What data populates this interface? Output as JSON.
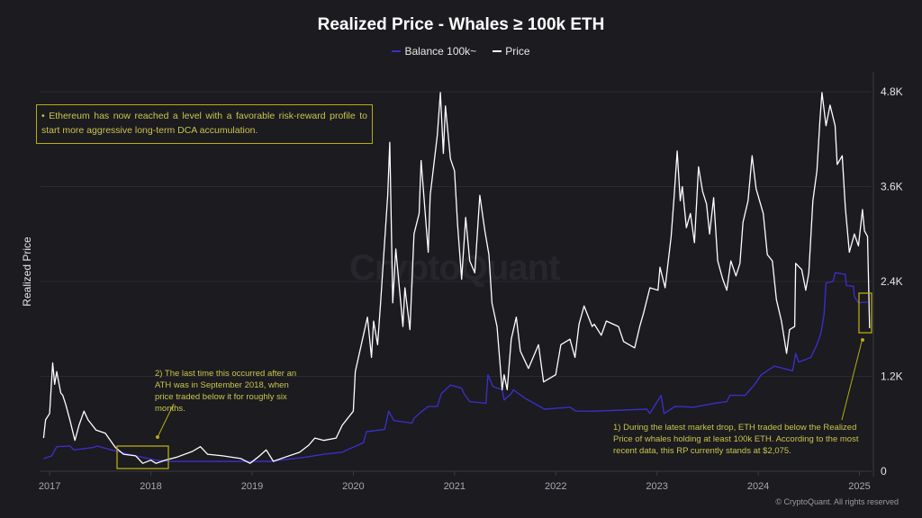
{
  "chart_data": {
    "type": "line",
    "title": "Realized Price - Whales ≥ 100k ETH",
    "ylabel": "Realized Price",
    "xlabel": "",
    "xlim": [
      2016.91,
      2025.12
    ],
    "ylim": [
      0,
      5000
    ],
    "x_ticks": [
      "2017",
      "2018",
      "2019",
      "2020",
      "2021",
      "2022",
      "2023",
      "2024",
      "2025"
    ],
    "y_ticks": [
      {
        "value": 0,
        "label": "0"
      },
      {
        "value": 1200,
        "label": "1.2K"
      },
      {
        "value": 2400,
        "label": "2.4K"
      },
      {
        "value": 3600,
        "label": "3.6K"
      },
      {
        "value": 4800,
        "label": "4.8K"
      }
    ],
    "y_axis_side": "right",
    "grid": true,
    "legend_position": "top-center",
    "series": [
      {
        "name": "Balance 100k~",
        "color": "#3a2fc4",
        "points": [
          [
            2016.94,
            160
          ],
          [
            2017.02,
            195
          ],
          [
            2017.07,
            310
          ],
          [
            2017.2,
            320
          ],
          [
            2017.24,
            270
          ],
          [
            2017.43,
            300
          ],
          [
            2017.47,
            320
          ],
          [
            2017.52,
            300
          ],
          [
            2017.67,
            250
          ],
          [
            2017.85,
            195
          ],
          [
            2018.05,
            140
          ],
          [
            2018.2,
            125
          ],
          [
            2018.65,
            125
          ],
          [
            2019.18,
            125
          ],
          [
            2019.54,
            180
          ],
          [
            2019.71,
            215
          ],
          [
            2019.89,
            240
          ],
          [
            2019.94,
            270
          ],
          [
            2020.01,
            310
          ],
          [
            2020.1,
            360
          ],
          [
            2020.13,
            500
          ],
          [
            2020.31,
            530
          ],
          [
            2020.35,
            760
          ],
          [
            2020.4,
            640
          ],
          [
            2020.58,
            610
          ],
          [
            2020.6,
            670
          ],
          [
            2020.67,
            750
          ],
          [
            2020.74,
            820
          ],
          [
            2020.83,
            820
          ],
          [
            2020.87,
            980
          ],
          [
            2020.96,
            1090
          ],
          [
            2021.07,
            1050
          ],
          [
            2021.09,
            990
          ],
          [
            2021.15,
            880
          ],
          [
            2021.31,
            860
          ],
          [
            2021.33,
            1220
          ],
          [
            2021.38,
            1070
          ],
          [
            2021.47,
            1030
          ],
          [
            2021.49,
            900
          ],
          [
            2021.56,
            980
          ],
          [
            2021.58,
            1030
          ],
          [
            2021.7,
            920
          ],
          [
            2021.89,
            785
          ],
          [
            2022.14,
            810
          ],
          [
            2022.2,
            760
          ],
          [
            2022.38,
            760
          ],
          [
            2022.9,
            785
          ],
          [
            2022.93,
            730
          ],
          [
            2023.04,
            960
          ],
          [
            2023.07,
            730
          ],
          [
            2023.18,
            820
          ],
          [
            2023.36,
            810
          ],
          [
            2023.57,
            860
          ],
          [
            2023.69,
            880
          ],
          [
            2023.72,
            960
          ],
          [
            2023.87,
            960
          ],
          [
            2023.96,
            1090
          ],
          [
            2024.03,
            1220
          ],
          [
            2024.16,
            1330
          ],
          [
            2024.34,
            1270
          ],
          [
            2024.37,
            1490
          ],
          [
            2024.4,
            1380
          ],
          [
            2024.52,
            1440
          ],
          [
            2024.58,
            1600
          ],
          [
            2024.62,
            1750
          ],
          [
            2024.65,
            1980
          ],
          [
            2024.67,
            2380
          ],
          [
            2024.74,
            2400
          ],
          [
            2024.76,
            2510
          ],
          [
            2024.86,
            2490
          ],
          [
            2024.87,
            2350
          ],
          [
            2024.94,
            2340
          ],
          [
            2024.95,
            2210
          ],
          [
            2024.99,
            2130
          ],
          [
            2025.08,
            2140
          ]
        ]
      },
      {
        "name": "Price",
        "color": "#ffffff",
        "points": [
          [
            2016.94,
            420
          ],
          [
            2016.96,
            650
          ],
          [
            2017.0,
            730
          ],
          [
            2017.03,
            1370
          ],
          [
            2017.05,
            1100
          ],
          [
            2017.07,
            1260
          ],
          [
            2017.11,
            990
          ],
          [
            2017.13,
            960
          ],
          [
            2017.16,
            840
          ],
          [
            2017.2,
            650
          ],
          [
            2017.25,
            390
          ],
          [
            2017.29,
            580
          ],
          [
            2017.34,
            760
          ],
          [
            2017.38,
            650
          ],
          [
            2017.46,
            520
          ],
          [
            2017.55,
            480
          ],
          [
            2017.6,
            390
          ],
          [
            2017.65,
            300
          ],
          [
            2017.73,
            215
          ],
          [
            2017.85,
            195
          ],
          [
            2017.92,
            100
          ],
          [
            2018.0,
            140
          ],
          [
            2018.05,
            100
          ],
          [
            2018.14,
            140
          ],
          [
            2018.26,
            180
          ],
          [
            2018.41,
            250
          ],
          [
            2018.49,
            310
          ],
          [
            2018.56,
            215
          ],
          [
            2018.71,
            195
          ],
          [
            2018.89,
            160
          ],
          [
            2018.98,
            100
          ],
          [
            2019.06,
            180
          ],
          [
            2019.14,
            270
          ],
          [
            2019.21,
            125
          ],
          [
            2019.33,
            180
          ],
          [
            2019.47,
            240
          ],
          [
            2019.56,
            330
          ],
          [
            2019.62,
            420
          ],
          [
            2019.71,
            390
          ],
          [
            2019.83,
            420
          ],
          [
            2019.89,
            580
          ],
          [
            2020.0,
            760
          ],
          [
            2020.02,
            1260
          ],
          [
            2020.1,
            1720
          ],
          [
            2020.14,
            1950
          ],
          [
            2020.18,
            1440
          ],
          [
            2020.2,
            1900
          ],
          [
            2020.24,
            1600
          ],
          [
            2020.27,
            2130
          ],
          [
            2020.34,
            3490
          ],
          [
            2020.36,
            4160
          ],
          [
            2020.39,
            2130
          ],
          [
            2020.42,
            2810
          ],
          [
            2020.49,
            1830
          ],
          [
            2020.51,
            2320
          ],
          [
            2020.56,
            1790
          ],
          [
            2020.6,
            3000
          ],
          [
            2020.65,
            3260
          ],
          [
            2020.67,
            3930
          ],
          [
            2020.74,
            2770
          ],
          [
            2020.76,
            3490
          ],
          [
            2020.83,
            4250
          ],
          [
            2020.86,
            4790
          ],
          [
            2020.89,
            4020
          ],
          [
            2020.91,
            4620
          ],
          [
            2020.96,
            3950
          ],
          [
            2021.0,
            3800
          ],
          [
            2021.03,
            3120
          ],
          [
            2021.07,
            2430
          ],
          [
            2021.11,
            3210
          ],
          [
            2021.15,
            2660
          ],
          [
            2021.2,
            2510
          ],
          [
            2021.25,
            3490
          ],
          [
            2021.3,
            3040
          ],
          [
            2021.34,
            2740
          ],
          [
            2021.37,
            2130
          ],
          [
            2021.42,
            1830
          ],
          [
            2021.47,
            1030
          ],
          [
            2021.49,
            1220
          ],
          [
            2021.52,
            1030
          ],
          [
            2021.56,
            1670
          ],
          [
            2021.61,
            1950
          ],
          [
            2021.65,
            1520
          ],
          [
            2021.73,
            1300
          ],
          [
            2021.83,
            1600
          ],
          [
            2021.88,
            1130
          ],
          [
            2022.0,
            1220
          ],
          [
            2022.05,
            1600
          ],
          [
            2022.14,
            1670
          ],
          [
            2022.19,
            1440
          ],
          [
            2022.23,
            1860
          ],
          [
            2022.28,
            2090
          ],
          [
            2022.36,
            1830
          ],
          [
            2022.38,
            1860
          ],
          [
            2022.45,
            1720
          ],
          [
            2022.5,
            1900
          ],
          [
            2022.62,
            1830
          ],
          [
            2022.67,
            1640
          ],
          [
            2022.78,
            1560
          ],
          [
            2022.83,
            1830
          ],
          [
            2022.87,
            2010
          ],
          [
            2022.93,
            2320
          ],
          [
            2023.01,
            2290
          ],
          [
            2023.03,
            2580
          ],
          [
            2023.08,
            2320
          ],
          [
            2023.14,
            2970
          ],
          [
            2023.17,
            3490
          ],
          [
            2023.2,
            4050
          ],
          [
            2023.23,
            3420
          ],
          [
            2023.25,
            3600
          ],
          [
            2023.29,
            3080
          ],
          [
            2023.33,
            3260
          ],
          [
            2023.37,
            2890
          ],
          [
            2023.41,
            3850
          ],
          [
            2023.45,
            3540
          ],
          [
            2023.49,
            3380
          ],
          [
            2023.52,
            3000
          ],
          [
            2023.56,
            3460
          ],
          [
            2023.6,
            2660
          ],
          [
            2023.65,
            2430
          ],
          [
            2023.69,
            2290
          ],
          [
            2023.73,
            2660
          ],
          [
            2023.78,
            2470
          ],
          [
            2023.82,
            2630
          ],
          [
            2023.85,
            3150
          ],
          [
            2023.9,
            3420
          ],
          [
            2023.94,
            3990
          ],
          [
            2023.98,
            3570
          ],
          [
            2024.05,
            3260
          ],
          [
            2024.09,
            2740
          ],
          [
            2024.14,
            2660
          ],
          [
            2024.18,
            2170
          ],
          [
            2024.23,
            1900
          ],
          [
            2024.28,
            1490
          ],
          [
            2024.31,
            1790
          ],
          [
            2024.36,
            1830
          ],
          [
            2024.37,
            2630
          ],
          [
            2024.43,
            2550
          ],
          [
            2024.47,
            2290
          ],
          [
            2024.5,
            2510
          ],
          [
            2024.54,
            3420
          ],
          [
            2024.58,
            3800
          ],
          [
            2024.61,
            4450
          ],
          [
            2024.63,
            4790
          ],
          [
            2024.67,
            4370
          ],
          [
            2024.71,
            4630
          ],
          [
            2024.76,
            4370
          ],
          [
            2024.78,
            3880
          ],
          [
            2024.83,
            3990
          ],
          [
            2024.86,
            3340
          ],
          [
            2024.9,
            2770
          ],
          [
            2024.95,
            3000
          ],
          [
            2024.99,
            2850
          ],
          [
            2025.03,
            3310
          ],
          [
            2025.05,
            3040
          ],
          [
            2025.08,
            2970
          ],
          [
            2025.1,
            1810
          ]
        ]
      }
    ],
    "annotations": [
      {
        "text": "• Ethereum has now reached a level with a favorable risk-reward profile to start more aggressive long-term DCA accumulation."
      },
      {
        "text": "2) The last time this occurred after an ATH was in September 2018, when price traded below it for roughly six months."
      },
      {
        "text": "1) During the latest market drop, ETH traded below the Realized Price of whales holding at least 100k ETH. According to the most recent data, this RP currently stands at $2,075."
      }
    ],
    "annotation_color": "#c9c54a"
  },
  "watermark": "CryptoQuant",
  "copyright": "© CryptoQuant. All rights reserved"
}
